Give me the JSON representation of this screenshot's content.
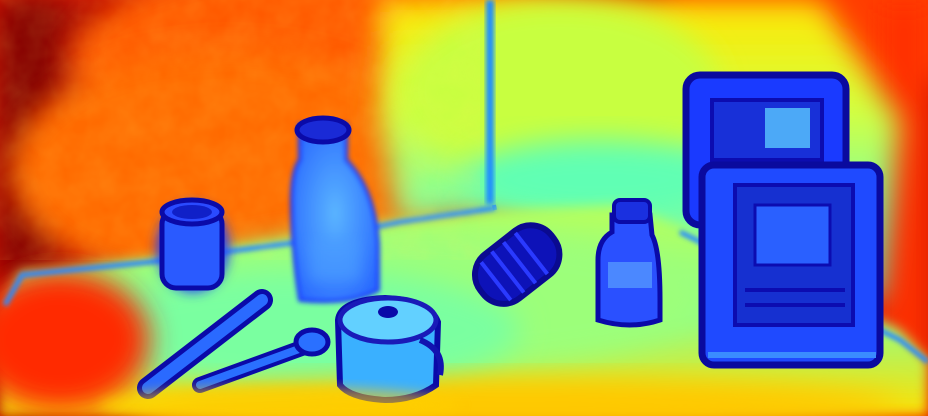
{
  "image": {
    "kind": "depth-map",
    "colormap": "jet",
    "colors": {
      "far": "#8b0000",
      "far_mid": "#ff3a00",
      "mid": "#ffd400",
      "near_mid": "#9bff6a",
      "near": "#2ee6e6",
      "closest": "#1a2fd6",
      "edge": "#0a0a9e"
    }
  },
  "objects": [
    {
      "name": "mug",
      "icon": "mug-icon"
    },
    {
      "name": "glass-bottle",
      "icon": "bottle-icon"
    },
    {
      "name": "cooking-pot",
      "icon": "pot-icon"
    },
    {
      "name": "screwdriver",
      "icon": "screwdriver-icon"
    },
    {
      "name": "wrench",
      "icon": "wrench-icon"
    },
    {
      "name": "cylinder-roll",
      "icon": "cylinder-icon"
    },
    {
      "name": "small-bottle",
      "icon": "bottle-icon"
    },
    {
      "name": "boxes-stack",
      "icon": "box-icon"
    }
  ]
}
